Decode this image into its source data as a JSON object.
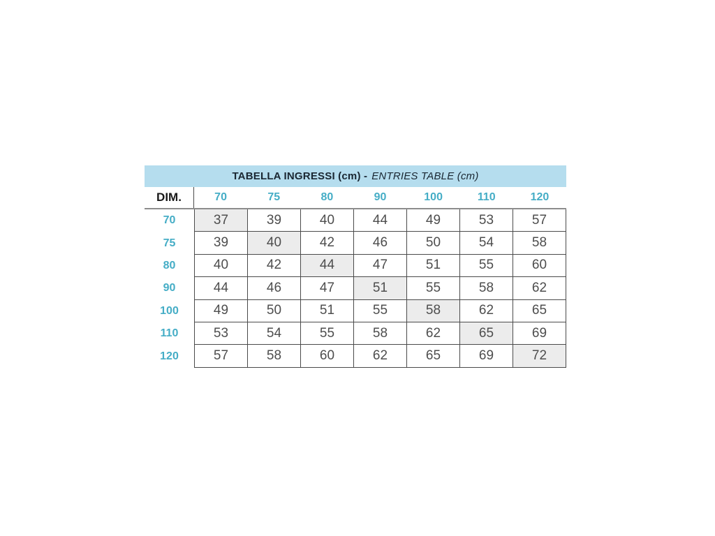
{
  "chart_data": {
    "type": "table",
    "title": "TABELLA INGRESSI (cm) - ENTRIES TABLE (cm)",
    "title_bold": "TABELLA INGRESSI (cm) -",
    "title_italic": "ENTRIES TABLE (cm)",
    "corner_label": "DIM.",
    "column_headers": [
      "70",
      "75",
      "80",
      "90",
      "100",
      "110",
      "120"
    ],
    "rows": [
      {
        "label": "70",
        "values": [
          "37",
          "39",
          "40",
          "44",
          "49",
          "53",
          "57"
        ]
      },
      {
        "label": "75",
        "values": [
          "39",
          "40",
          "42",
          "46",
          "50",
          "54",
          "58"
        ]
      },
      {
        "label": "80",
        "values": [
          "40",
          "42",
          "44",
          "47",
          "51",
          "55",
          "60"
        ]
      },
      {
        "label": "90",
        "values": [
          "44",
          "46",
          "47",
          "51",
          "55",
          "58",
          "62"
        ]
      },
      {
        "label": "100",
        "values": [
          "49",
          "50",
          "51",
          "55",
          "58",
          "62",
          "65"
        ]
      },
      {
        "label": "110",
        "values": [
          "53",
          "54",
          "55",
          "58",
          "62",
          "65",
          "69"
        ]
      },
      {
        "label": "120",
        "values": [
          "57",
          "58",
          "60",
          "62",
          "65",
          "69",
          "72"
        ]
      }
    ],
    "highlighted_cells": "diagonal (row index == column index) shaded light gray",
    "layout_hints": {
      "legend_position": "none",
      "grid_on": true
    },
    "colors": {
      "title_bar_bg": "#b5ddee",
      "title_text": "#1a2732",
      "accent_teal": "#45adc6",
      "cell_text": "#4d4d4d",
      "shaded_cell_bg": "#ececec",
      "grid_border": "#4a4a4a",
      "divider_gray": "#8c8c8c",
      "page_bg": "#ffffff"
    }
  }
}
